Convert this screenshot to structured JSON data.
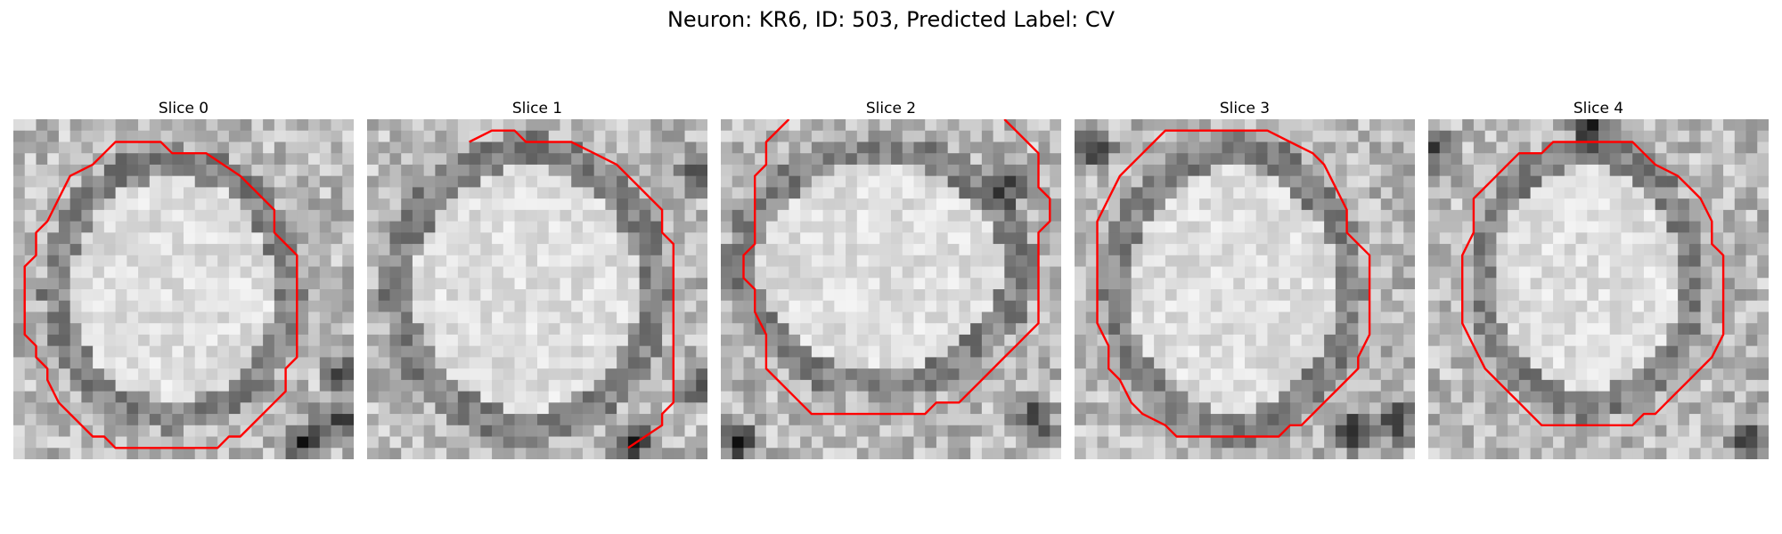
{
  "figure": {
    "title": "Neuron: KR6, ID: 503, Predicted Label: CV",
    "outline_color": "#ff0000",
    "colormap": "grayscale",
    "grid_size": 30
  },
  "panels": [
    {
      "title": "Slice 0",
      "contour": [
        [
          9,
          2
        ],
        [
          13,
          2
        ],
        [
          14,
          3
        ],
        [
          17,
          3
        ],
        [
          20,
          5
        ],
        [
          21,
          6
        ],
        [
          23,
          8
        ],
        [
          23,
          10
        ],
        [
          24,
          11
        ],
        [
          25,
          12
        ],
        [
          25,
          21
        ],
        [
          24,
          22
        ],
        [
          24,
          24
        ],
        [
          23,
          25
        ],
        [
          22,
          26
        ],
        [
          20,
          28
        ],
        [
          19,
          28
        ],
        [
          18,
          29
        ],
        [
          9,
          29
        ],
        [
          8,
          28
        ],
        [
          7,
          28
        ],
        [
          6,
          27
        ],
        [
          5,
          26
        ],
        [
          4,
          25
        ],
        [
          3,
          23
        ],
        [
          3,
          22
        ],
        [
          2,
          21
        ],
        [
          2,
          20
        ],
        [
          1,
          19
        ],
        [
          1,
          13
        ],
        [
          2,
          12
        ],
        [
          2,
          10
        ],
        [
          3,
          9
        ],
        [
          4,
          7
        ],
        [
          5,
          5
        ],
        [
          7,
          4
        ],
        [
          8,
          3
        ]
      ]
    },
    {
      "title": "Slice 1",
      "contour": [
        [
          9,
          2
        ],
        [
          11,
          1
        ],
        [
          13,
          1
        ],
        [
          14,
          2
        ],
        [
          18,
          2
        ],
        [
          20,
          3
        ],
        [
          22,
          4
        ],
        [
          23,
          5
        ],
        [
          24,
          6
        ],
        [
          25,
          7
        ],
        [
          26,
          8
        ],
        [
          26,
          10
        ],
        [
          27,
          11
        ],
        [
          27,
          25
        ],
        [
          26,
          26
        ],
        [
          26,
          27
        ],
        [
          23,
          29
        ]
      ]
    },
    {
      "title": "Slice 2",
      "contour": [
        [
          6,
          0
        ],
        [
          4,
          2
        ],
        [
          4,
          4
        ],
        [
          3,
          5
        ],
        [
          3,
          11
        ],
        [
          2,
          12
        ],
        [
          2,
          14
        ],
        [
          3,
          15
        ],
        [
          3,
          17
        ],
        [
          4,
          19
        ],
        [
          4,
          22
        ],
        [
          5,
          23
        ],
        [
          6,
          24
        ],
        [
          7,
          25
        ],
        [
          8,
          26
        ],
        [
          18,
          26
        ],
        [
          19,
          25
        ],
        [
          21,
          25
        ],
        [
          22,
          24
        ],
        [
          23,
          23
        ],
        [
          24,
          22
        ],
        [
          25,
          21
        ],
        [
          26,
          20
        ],
        [
          27,
          19
        ],
        [
          28,
          18
        ],
        [
          28,
          10
        ],
        [
          29,
          9
        ],
        [
          29,
          7
        ],
        [
          28,
          6
        ],
        [
          28,
          3
        ],
        [
          27,
          2
        ],
        [
          25,
          0
        ]
      ]
    },
    {
      "title": "Slice 3",
      "contour": [
        [
          8,
          1
        ],
        [
          17,
          1
        ],
        [
          19,
          2
        ],
        [
          21,
          3
        ],
        [
          22,
          4
        ],
        [
          23,
          6
        ],
        [
          24,
          8
        ],
        [
          24,
          10
        ],
        [
          25,
          11
        ],
        [
          26,
          12
        ],
        [
          26,
          19
        ],
        [
          25,
          21
        ],
        [
          25,
          22
        ],
        [
          24,
          23
        ],
        [
          23,
          24
        ],
        [
          22,
          25
        ],
        [
          21,
          26
        ],
        [
          20,
          27
        ],
        [
          19,
          27
        ],
        [
          18,
          28
        ],
        [
          10,
          28
        ],
        [
          9,
          28
        ],
        [
          8,
          27
        ],
        [
          6,
          26
        ],
        [
          5,
          25
        ],
        [
          4,
          23
        ],
        [
          3,
          22
        ],
        [
          3,
          20
        ],
        [
          2,
          18
        ],
        [
          2,
          9
        ],
        [
          3,
          7
        ],
        [
          4,
          5
        ],
        [
          5,
          4
        ],
        [
          6,
          3
        ],
        [
          7,
          2
        ]
      ]
    },
    {
      "title": "Slice 4",
      "contour": [
        [
          8,
          3
        ],
        [
          10,
          3
        ],
        [
          11,
          2
        ],
        [
          18,
          2
        ],
        [
          19,
          3
        ],
        [
          20,
          4
        ],
        [
          22,
          5
        ],
        [
          23,
          6
        ],
        [
          24,
          7
        ],
        [
          25,
          9
        ],
        [
          25,
          11
        ],
        [
          26,
          12
        ],
        [
          26,
          19
        ],
        [
          25,
          21
        ],
        [
          24,
          22
        ],
        [
          23,
          23
        ],
        [
          22,
          24
        ],
        [
          21,
          25
        ],
        [
          20,
          26
        ],
        [
          19,
          26
        ],
        [
          18,
          27
        ],
        [
          10,
          27
        ],
        [
          9,
          26
        ],
        [
          8,
          25
        ],
        [
          7,
          24
        ],
        [
          6,
          23
        ],
        [
          5,
          22
        ],
        [
          4,
          20
        ],
        [
          3,
          18
        ],
        [
          3,
          12
        ],
        [
          4,
          10
        ],
        [
          4,
          7
        ],
        [
          5,
          6
        ],
        [
          6,
          5
        ],
        [
          7,
          4
        ]
      ]
    }
  ]
}
